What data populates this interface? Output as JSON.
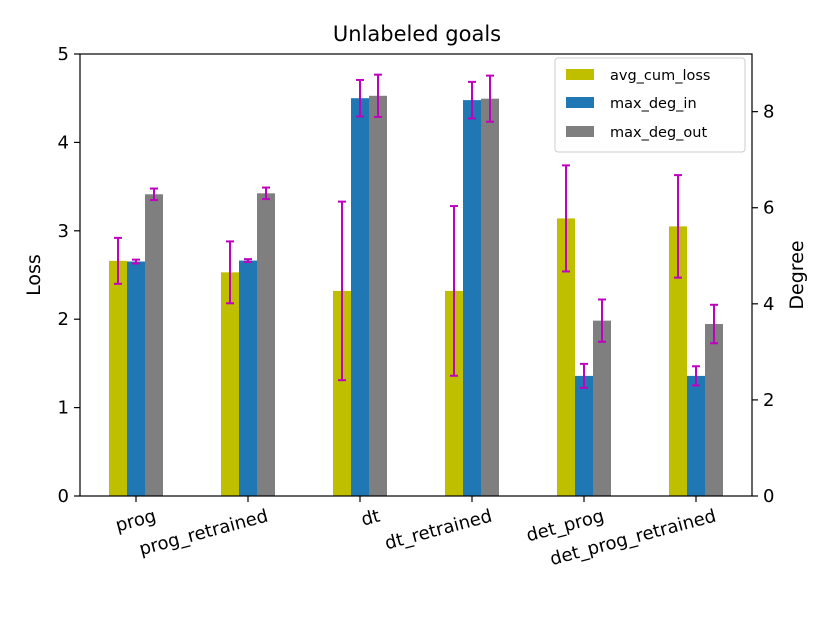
{
  "chart_data": {
    "type": "bar",
    "title": "Unlabeled goals",
    "xlabel": "",
    "ylabel": "Loss",
    "ylabel_right": "Degree",
    "categories": [
      "prog",
      "prog_retrained",
      "dt",
      "dt_retrained",
      "det_prog",
      "det_prog_retrained"
    ],
    "ylim": [
      0,
      5
    ],
    "ylim_right": [
      0,
      9.2
    ],
    "yticks": [
      "0",
      "1",
      "2",
      "3",
      "4",
      "5"
    ],
    "yticks_right": [
      "0",
      "2",
      "4",
      "6",
      "8"
    ],
    "legend_position": "top-right",
    "series": [
      {
        "name": "avg_cum_loss",
        "axis": "left",
        "color": "#bfbf00",
        "values": [
          2.66,
          2.53,
          2.32,
          2.32,
          3.14,
          3.05
        ],
        "errors": [
          0.26,
          0.35,
          1.01,
          0.96,
          0.6,
          0.58
        ]
      },
      {
        "name": "max_deg_in",
        "axis": "right",
        "color": "#1f77b4",
        "values": [
          4.88,
          4.9,
          8.28,
          8.24,
          2.5,
          2.5
        ],
        "errors": [
          0.04,
          0.03,
          0.38,
          0.38,
          0.25,
          0.2
        ]
      },
      {
        "name": "max_deg_out",
        "axis": "right",
        "color": "#7f7f7f",
        "values": [
          6.28,
          6.3,
          8.33,
          8.27,
          3.65,
          3.58
        ],
        "errors": [
          0.12,
          0.12,
          0.44,
          0.48,
          0.44,
          0.4
        ]
      }
    ],
    "error_bar_color": "#bf00bf"
  }
}
